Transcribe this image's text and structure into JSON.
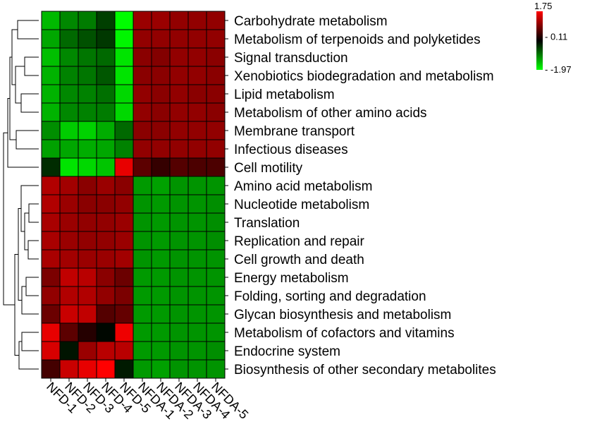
{
  "chart_data": {
    "type": "heatmap",
    "title": "",
    "colors": {
      "low": "#00ff00",
      "mid": "#000000",
      "high": "#ff0000"
    },
    "scale": {
      "min": -1.97,
      "mid": 0.11,
      "max": 1.75
    },
    "legend": {
      "position": "top-right",
      "tick_labels": [
        "1.75",
        "0.11",
        "-1.97"
      ],
      "tick_values": [
        1.75,
        0.11,
        -1.97
      ]
    },
    "columns": [
      "NFD-1",
      "NFD-2",
      "NFD-3",
      "NFD-4",
      "NFD-5",
      "NFDA-1",
      "NFDA-2",
      "NFDA-3",
      "NFDA-4",
      "NFDA-5"
    ],
    "rows": [
      "Carbohydrate metabolism",
      "Metabolism of terpenoids and polyketides",
      "Signal transduction",
      "Xenobiotics biodegradation and metabolism",
      "Lipid metabolism",
      "Metabolism of other amino acids",
      "Membrane transport",
      "Infectious diseases",
      "Cell motility",
      "Amino acid metabolism",
      "Nucleotide metabolism",
      "Translation",
      "Replication and repair",
      "Cell growth and death",
      "Energy metabolism",
      "Folding, sorting and degradation",
      "Glycan biosynthesis and metabolism",
      "Metabolism of cofactors and vitamins",
      "Endocrine system",
      "Biosynthesis of other secondary metabolites"
    ],
    "values": [
      [
        -1.4,
        -1.0,
        -0.9,
        -0.4,
        -1.95,
        1.1,
        1.1,
        1.05,
        1.05,
        1.05
      ],
      [
        -1.25,
        -0.75,
        -0.55,
        -0.35,
        -1.9,
        1.05,
        1.05,
        1.05,
        1.05,
        1.05
      ],
      [
        -1.45,
        -1.0,
        -0.85,
        -0.75,
        -1.75,
        1.0,
        0.95,
        1.05,
        1.05,
        1.0
      ],
      [
        -1.35,
        -0.95,
        -0.85,
        -0.6,
        -1.75,
        1.0,
        1.0,
        1.05,
        1.05,
        1.0
      ],
      [
        -1.35,
        -1.0,
        -0.95,
        -0.8,
        -1.65,
        1.05,
        1.0,
        1.05,
        1.0,
        1.0
      ],
      [
        -1.35,
        -1.0,
        -0.95,
        -0.9,
        -1.65,
        1.05,
        1.0,
        1.05,
        1.05,
        1.0
      ],
      [
        -1.05,
        -1.55,
        -1.6,
        -1.3,
        -0.75,
        1.0,
        1.0,
        1.05,
        1.05,
        1.05
      ],
      [
        -1.2,
        -1.25,
        -1.3,
        -1.25,
        -0.95,
        1.05,
        1.05,
        1.05,
        1.05,
        1.05
      ],
      [
        -0.25,
        -1.75,
        -1.65,
        -1.5,
        1.6,
        0.7,
        0.45,
        0.65,
        0.6,
        0.6
      ],
      [
        1.25,
        1.15,
        1.0,
        1.1,
        1.0,
        -1.15,
        -1.2,
        -1.1,
        -1.1,
        -1.1
      ],
      [
        1.25,
        1.1,
        1.0,
        1.0,
        1.05,
        -1.1,
        -1.15,
        -1.1,
        -1.1,
        -1.05
      ],
      [
        1.2,
        1.1,
        1.05,
        1.05,
        1.1,
        -1.1,
        -1.15,
        -1.1,
        -1.1,
        -1.05
      ],
      [
        1.2,
        1.1,
        1.05,
        1.05,
        1.1,
        -1.1,
        -1.15,
        -1.1,
        -1.1,
        -1.05
      ],
      [
        1.2,
        1.15,
        1.1,
        1.1,
        1.15,
        -1.1,
        -1.15,
        -1.1,
        -1.1,
        -1.1
      ],
      [
        0.9,
        1.35,
        1.3,
        1.0,
        0.8,
        -1.15,
        -1.15,
        -1.1,
        -1.1,
        -1.1
      ],
      [
        1.05,
        1.25,
        1.25,
        1.05,
        0.9,
        -1.15,
        -1.15,
        -1.1,
        -1.1,
        -1.1
      ],
      [
        0.8,
        1.4,
        1.35,
        0.65,
        0.75,
        -1.15,
        -1.15,
        -1.1,
        -1.1,
        -1.1
      ],
      [
        1.6,
        0.7,
        0.35,
        0.05,
        1.65,
        -1.15,
        -1.15,
        -1.1,
        -1.1,
        -1.1
      ],
      [
        1.5,
        -0.05,
        1.1,
        1.3,
        1.3,
        -1.15,
        -1.15,
        -1.1,
        -1.1,
        -1.05
      ],
      [
        0.55,
        1.4,
        1.6,
        1.75,
        -0.1,
        -1.15,
        -1.2,
        -1.1,
        -1.1,
        -1.1
      ]
    ],
    "row_dendrogram": true,
    "column_dendrogram": false
  }
}
